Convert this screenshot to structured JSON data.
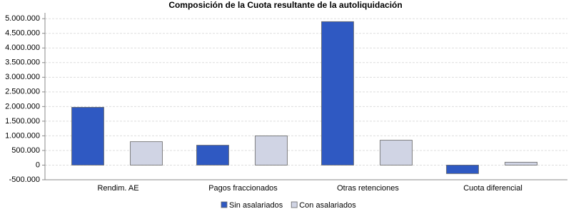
{
  "chart_data": {
    "type": "bar",
    "title": "Composición de la Cuota resultante de la autoliquidación",
    "categories": [
      "Rendim. AE",
      "Pagos fraccionados",
      "Otras retenciones",
      "Cuota diferencial"
    ],
    "series": [
      {
        "name": "Sin asalariados",
        "color": "#2f59c2",
        "values": [
          1975000,
          680000,
          4900000,
          -290000
        ]
      },
      {
        "name": "Con asalariados",
        "color": "#d0d4e4",
        "values": [
          800000,
          1000000,
          850000,
          100000
        ]
      }
    ],
    "ylim": [
      -500000,
      5200000
    ],
    "yticks": [
      {
        "value": -500000,
        "label": "-500.000"
      },
      0,
      {
        "value": 500000,
        "label": "500.000"
      },
      {
        "value": 1000000,
        "label": "1.000.000"
      },
      {
        "value": 1500000,
        "label": "1.500.000"
      },
      {
        "value": 2000000,
        "label": "2.000.000"
      },
      {
        "value": 2500000,
        "label": "2.500.000"
      },
      {
        "value": 3000000,
        "label": "3.000.000"
      },
      {
        "value": 3500000,
        "label": "3.500.000"
      },
      {
        "value": 4000000,
        "label": "4.000.000"
      },
      {
        "value": 4500000,
        "label": "4.500.000"
      },
      {
        "value": 5000000,
        "label": "5.000.000"
      }
    ],
    "grid": true
  }
}
